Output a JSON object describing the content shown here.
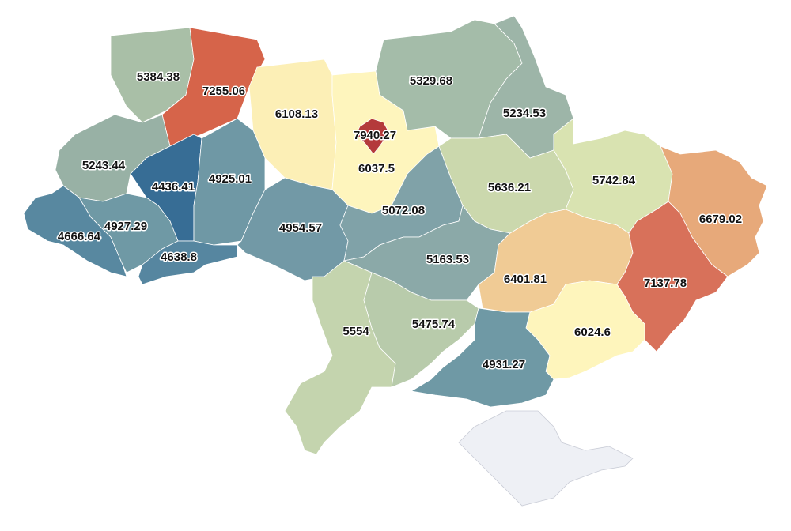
{
  "map": {
    "type": "choropleth",
    "no_data_color": "#eef0f5",
    "region_stroke": "#ffffff",
    "regions": [
      {
        "value": 5384.38,
        "color": "#a9bfa7"
      },
      {
        "value": 7255.06,
        "color": "#d6644a"
      },
      {
        "value": 6108.13,
        "color": "#fcefb6"
      },
      {
        "value": 6037.5,
        "color": "#fef5bd"
      },
      {
        "value": 7940.27,
        "color": "#b43a3b"
      },
      {
        "value": 5329.68,
        "color": "#a4bca9"
      },
      {
        "value": 5234.53,
        "color": "#9db5a8"
      },
      {
        "value": 5243.44,
        "color": "#98b1a5"
      },
      {
        "value": 4436.41,
        "color": "#376d95"
      },
      {
        "value": 4925.01,
        "color": "#6f98a5"
      },
      {
        "value": 4666.64,
        "color": "#5888a0"
      },
      {
        "value": 4927.29,
        "color": "#6f99a5"
      },
      {
        "value": 4638.8,
        "color": "#5686a0"
      },
      {
        "value": 4954.57,
        "color": "#7299a6"
      },
      {
        "value": 5072.08,
        "color": "#80a2a8"
      },
      {
        "value": 5636.21,
        "color": "#cbd8ad"
      },
      {
        "value": 5742.84,
        "color": "#d9e3b1"
      },
      {
        "value": 6679.02,
        "color": "#e7a97a"
      },
      {
        "value": 5163.53,
        "color": "#8ba9a8"
      },
      {
        "value": 6401.81,
        "color": "#f0cb95"
      },
      {
        "value": 7137.78,
        "color": "#d8715a"
      },
      {
        "value": 6024.6,
        "color": "#fef5bc"
      },
      {
        "value": 5554,
        "color": "#c4d4ae"
      },
      {
        "value": 5475.74,
        "color": "#b8cbab"
      },
      {
        "value": 4931.27,
        "color": "#6f99a5"
      }
    ]
  }
}
